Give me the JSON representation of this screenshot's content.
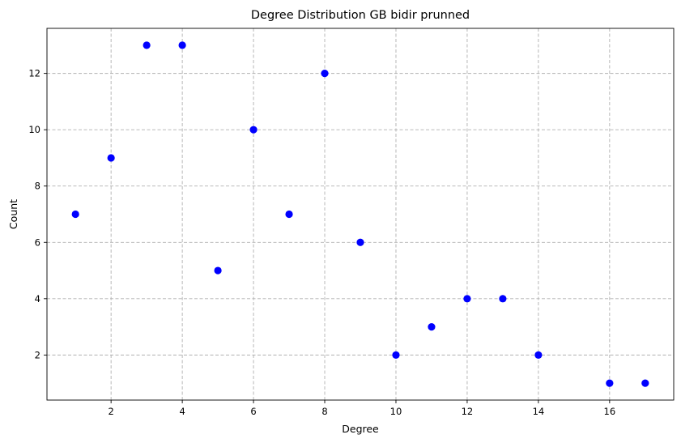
{
  "chart_data": {
    "type": "scatter",
    "title": "Degree Distribution GB bidir prunned",
    "xlabel": "Degree",
    "ylabel": "Count",
    "xlim": [
      0.2,
      17.8
    ],
    "ylim": [
      0.4,
      13.6
    ],
    "xticks": [
      2,
      4,
      6,
      8,
      10,
      12,
      14,
      16
    ],
    "yticks": [
      2,
      4,
      6,
      8,
      10,
      12
    ],
    "grid": true,
    "marker_color": "#0000ff",
    "series": [
      {
        "points": [
          {
            "x": 1,
            "y": 7
          },
          {
            "x": 2,
            "y": 9
          },
          {
            "x": 3,
            "y": 13
          },
          {
            "x": 4,
            "y": 13
          },
          {
            "x": 5,
            "y": 5
          },
          {
            "x": 6,
            "y": 10
          },
          {
            "x": 7,
            "y": 7
          },
          {
            "x": 8,
            "y": 12
          },
          {
            "x": 9,
            "y": 6
          },
          {
            "x": 10,
            "y": 2
          },
          {
            "x": 11,
            "y": 3
          },
          {
            "x": 12,
            "y": 4
          },
          {
            "x": 13,
            "y": 4
          },
          {
            "x": 14,
            "y": 2
          },
          {
            "x": 16,
            "y": 1
          },
          {
            "x": 17,
            "y": 1
          }
        ]
      }
    ]
  }
}
